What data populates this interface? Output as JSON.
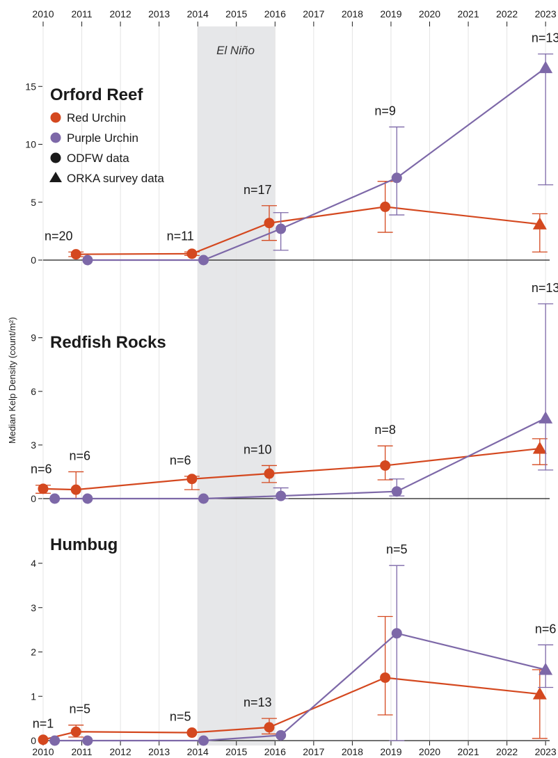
{
  "colors": {
    "red": "#d4481f",
    "purple": "#7d68a8",
    "black": "#1a1a1a",
    "grid": "#e4e4e4",
    "shade": "#e6e7e9"
  },
  "chart_data": [
    {
      "type": "line",
      "title": "Orford Reef",
      "ylabel": "Median Kelp Density (count/m²)",
      "x_ticks": [
        "2010",
        "2011",
        "2012",
        "2013",
        "2014",
        "2015",
        "2016",
        "2017",
        "2018",
        "2019",
        "2020",
        "2021",
        "2022",
        "2023"
      ],
      "y_ticks": [
        "0",
        "5",
        "10",
        "15"
      ],
      "ylim": [
        0,
        18.5
      ],
      "shaded_band": {
        "x": [
          2014,
          2016
        ],
        "label": "El Niño"
      },
      "legend": {
        "placement": "top-left",
        "entries": [
          {
            "label": "Red Urchin",
            "marker": "circle",
            "color": "#d4481f"
          },
          {
            "label": "Purple Urchin",
            "marker": "circle",
            "color": "#7d68a8"
          },
          {
            "label": "ODFW data",
            "marker": "circle",
            "color": "#1a1a1a"
          },
          {
            "label": "ORKA survey data",
            "marker": "triangle",
            "color": "#1a1a1a"
          }
        ]
      },
      "series": [
        {
          "name": "Red Urchin",
          "x": [
            2010.85,
            2013.85,
            2015.85,
            2018.85,
            2022.85
          ],
          "y": [
            0.5,
            0.55,
            3.2,
            4.6,
            3.1
          ],
          "err_low": [
            0.3,
            0.4,
            1.7,
            2.4,
            0.7
          ],
          "err_high": [
            0.7,
            0.7,
            4.7,
            6.8,
            4.0
          ],
          "markers": [
            "circle",
            "circle",
            "circle",
            "circle",
            "triangle"
          ]
        },
        {
          "name": "Purple Urchin",
          "x": [
            2011.15,
            2014.15,
            2016.15,
            2019.15,
            2023.0
          ],
          "y": [
            0.0,
            0.0,
            2.7,
            7.1,
            16.6
          ],
          "err_low": [
            0.0,
            0.0,
            0.85,
            3.9,
            6.5
          ],
          "err_high": [
            0.0,
            0.0,
            4.1,
            11.5,
            17.8
          ],
          "markers": [
            "circle",
            "circle",
            "circle",
            "circle",
            "triangle"
          ]
        }
      ],
      "n_labels": [
        {
          "x": 2010.4,
          "text": "n=20"
        },
        {
          "x": 2013.55,
          "text": "n=11"
        },
        {
          "x": 2015.55,
          "text": "n=17"
        },
        {
          "x": 2018.85,
          "text": "n=9"
        },
        {
          "x": 2023.0,
          "text": "n=13"
        }
      ]
    },
    {
      "type": "line",
      "title": "Redfish Rocks",
      "x_ticks": [
        "2010",
        "2011",
        "2012",
        "2013",
        "2014",
        "2015",
        "2016",
        "2017",
        "2018",
        "2019",
        "2020",
        "2021",
        "2022",
        "2023"
      ],
      "y_ticks": [
        "0",
        "3",
        "6",
        "9"
      ],
      "ylim": [
        0,
        11.4
      ],
      "shaded_band": {
        "x": [
          2014,
          2016
        ]
      },
      "series": [
        {
          "name": "Red Urchin",
          "x": [
            2010.0,
            2010.85,
            2013.85,
            2015.85,
            2018.85,
            2022.85
          ],
          "y": [
            0.55,
            0.5,
            1.1,
            1.4,
            1.85,
            2.8
          ],
          "err_low": [
            0.3,
            0.0,
            0.5,
            0.9,
            1.05,
            1.9
          ],
          "err_high": [
            0.75,
            1.5,
            1.25,
            1.85,
            2.95,
            3.35
          ],
          "markers": [
            "circle",
            "circle",
            "circle",
            "circle",
            "circle",
            "triangle"
          ]
        },
        {
          "name": "Purple Urchin",
          "x": [
            2010.3,
            2011.15,
            2014.15,
            2016.15,
            2019.15,
            2023.0
          ],
          "y": [
            0.0,
            0.0,
            0.0,
            0.15,
            0.4,
            4.5
          ],
          "err_low": [
            0.0,
            0.0,
            0.0,
            0.0,
            0.15,
            1.6
          ],
          "err_high": [
            0.0,
            0.0,
            0.0,
            0.6,
            1.1,
            10.9
          ],
          "markers": [
            "circle",
            "circle",
            "circle",
            "circle",
            "circle",
            "triangle"
          ]
        }
      ],
      "n_labels": [
        {
          "x": 2009.95,
          "text": "n=6"
        },
        {
          "x": 2010.95,
          "text": "n=6"
        },
        {
          "x": 2013.55,
          "text": "n=6"
        },
        {
          "x": 2015.55,
          "text": "n=10"
        },
        {
          "x": 2018.85,
          "text": "n=8"
        },
        {
          "x": 2023.0,
          "text": "n=13"
        }
      ]
    },
    {
      "type": "line",
      "title": "Humbug",
      "x_ticks": [
        "2010",
        "2011",
        "2012",
        "2013",
        "2014",
        "2015",
        "2016",
        "2017",
        "2018",
        "2019",
        "2020",
        "2021",
        "2022",
        "2023"
      ],
      "y_ticks": [
        "0",
        "1",
        "2",
        "3",
        "4"
      ],
      "ylim": [
        0,
        4.8
      ],
      "shaded_band": {
        "x": [
          2014,
          2016
        ]
      },
      "series": [
        {
          "name": "Red Urchin",
          "x": [
            2010.0,
            2010.85,
            2013.85,
            2015.85,
            2018.85,
            2022.85
          ],
          "y": [
            0.02,
            0.2,
            0.18,
            0.3,
            1.42,
            1.05
          ],
          "err_low": [
            0.02,
            0.08,
            0.18,
            0.15,
            0.58,
            0.05
          ],
          "err_high": [
            0.02,
            0.35,
            0.18,
            0.5,
            2.8,
            1.6
          ],
          "markers": [
            "circle",
            "circle",
            "circle",
            "circle",
            "circle",
            "triangle"
          ]
        },
        {
          "name": "Purple Urchin",
          "x": [
            2010.3,
            2011.15,
            2014.15,
            2016.15,
            2019.15,
            2023.0
          ],
          "y": [
            0.0,
            0.0,
            0.0,
            0.12,
            2.42,
            1.6
          ],
          "err_low": [
            0.0,
            0.0,
            0.0,
            0.0,
            0.0,
            1.2
          ],
          "err_high": [
            0.0,
            0.0,
            0.0,
            0.0,
            3.95,
            2.16
          ],
          "markers": [
            "circle",
            "circle",
            "circle",
            "circle",
            "circle",
            "triangle"
          ]
        }
      ],
      "n_labels": [
        {
          "x": 2010.0,
          "text": "n=1"
        },
        {
          "x": 2010.95,
          "text": "n=5"
        },
        {
          "x": 2013.55,
          "text": "n=5"
        },
        {
          "x": 2015.55,
          "text": "n=13"
        },
        {
          "x": 2019.15,
          "text": "n=5"
        },
        {
          "x": 2023.0,
          "text": "n=6"
        }
      ]
    }
  ]
}
